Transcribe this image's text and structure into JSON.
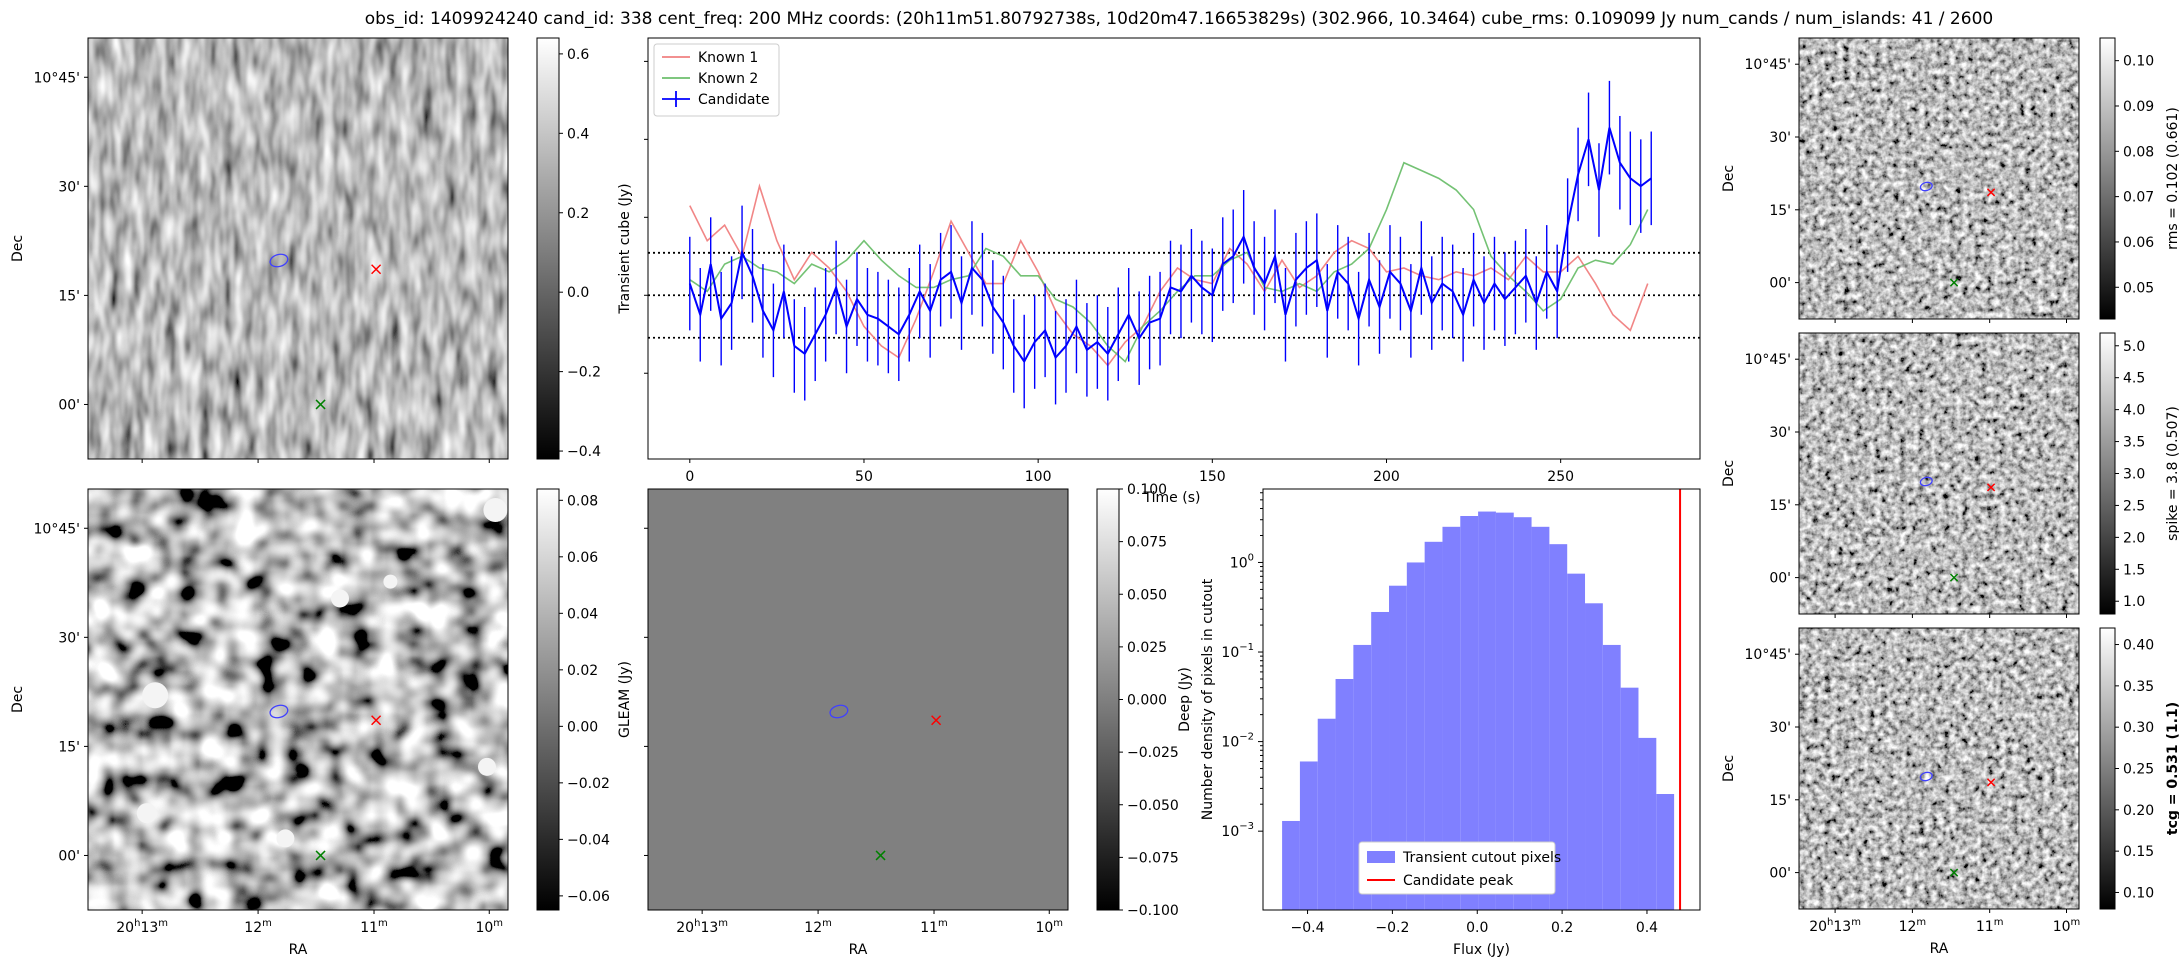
{
  "title": "obs_id: 1409924240 cand_id: 338 cent_freq: 200 MHz coords: (20h11m51.80792738s, 10d20m47.16653829s) (302.966, 10.3464) cube_rms: 0.109099 Jy num_cands / num_islands: 41 / 2600",
  "colors": {
    "known1": "#f08080",
    "known2": "#6dbf6d",
    "candidate": "#0000ff",
    "hist": "#8080ff",
    "peak": "#ff0000",
    "red_marker": "#ff0000",
    "green_marker": "#008000",
    "ellipse": "#4040ff"
  },
  "chart_data": [
    {
      "type": "heatmap",
      "panel": "transient-cube",
      "cbar_label": "Transient cube (Jy)",
      "cbar_ticks": [
        "0.6",
        "0.4",
        "0.2",
        "0.0",
        "−0.2",
        "−0.4"
      ],
      "cbar_range": [
        -0.42,
        0.64
      ],
      "ylabel": "Dec",
      "xlabel": "",
      "dec_ticks": [
        "10°45'",
        "30'",
        "15'",
        "00'"
      ],
      "ra_ticks": [],
      "markers": {
        "red_x": [
          20.183,
          10.31
        ],
        "green_x": [
          20.191,
          10.0
        ],
        "ellipse": [
          20.197,
          10.33
        ]
      },
      "texture": "stripes"
    },
    {
      "type": "heatmap",
      "panel": "gleam",
      "cbar_label": "GLEAM (Jy)",
      "cbar_ticks": [
        "0.08",
        "0.06",
        "0.04",
        "0.02",
        "0.00",
        "−0.02",
        "−0.04",
        "−0.06"
      ],
      "cbar_range": [
        -0.065,
        0.084
      ],
      "ylabel": "Dec",
      "xlabel": "RA",
      "dec_ticks": [
        "10°45'",
        "30'",
        "15'",
        "00'"
      ],
      "ra_ticks": [
        "20h13m",
        "12m",
        "11m",
        "10m"
      ],
      "markers": {
        "red_x": [
          20.183,
          10.31
        ],
        "green_x": [
          20.191,
          10.0
        ],
        "ellipse": [
          20.197,
          10.33
        ]
      },
      "texture": "blobs"
    },
    {
      "type": "heatmap",
      "panel": "deep",
      "cbar_label": "Deep (Jy)",
      "cbar_ticks": [
        "0.100",
        "0.075",
        "0.050",
        "0.025",
        "0.000",
        "−0.025",
        "−0.050",
        "−0.075",
        "−0.100"
      ],
      "cbar_range": [
        -0.1,
        0.1
      ],
      "ylabel": "",
      "xlabel": "RA",
      "dec_ticks": [],
      "ra_ticks": [
        "20h13m",
        "12m",
        "11m",
        "10m"
      ],
      "markers": {
        "red_x": [
          20.183,
          10.31
        ],
        "green_x": [
          20.191,
          10.0
        ],
        "ellipse": [
          20.197,
          10.33
        ]
      },
      "texture": "flat"
    },
    {
      "type": "line",
      "panel": "lightcurve",
      "xlabel": "Time (s)",
      "ylabel": "",
      "xlim": [
        -12,
        290
      ],
      "ylim": [
        -0.42,
        0.66
      ],
      "x_ticks": [
        "0",
        "50",
        "100",
        "150",
        "200",
        "250"
      ],
      "hlines": [
        -0.109,
        0.0,
        0.109
      ],
      "legend": {
        "location": "upper left",
        "entries": [
          "Known 1",
          "Known 2",
          "Candidate"
        ]
      },
      "series": [
        {
          "name": "Known 1",
          "x": [
            0,
            5,
            10,
            15,
            20,
            25,
            30,
            35,
            40,
            45,
            50,
            55,
            60,
            65,
            70,
            75,
            80,
            85,
            90,
            95,
            100,
            105,
            110,
            115,
            120,
            125,
            130,
            135,
            140,
            145,
            150,
            155,
            160,
            165,
            170,
            175,
            180,
            185,
            190,
            195,
            200,
            205,
            210,
            215,
            220,
            225,
            230,
            235,
            240,
            245,
            250,
            255,
            260,
            265,
            270,
            275
          ],
          "values": [
            0.23,
            0.14,
            0.18,
            0.1,
            0.28,
            0.14,
            0.04,
            0.11,
            0.07,
            0.01,
            -0.08,
            -0.13,
            -0.16,
            -0.06,
            0.06,
            0.19,
            0.11,
            0.03,
            0.03,
            0.14,
            0.06,
            -0.04,
            -0.1,
            -0.13,
            -0.18,
            -0.12,
            -0.08,
            0.01,
            0.07,
            0.04,
            0.03,
            0.12,
            0.08,
            0.01,
            0.09,
            0.02,
            0.05,
            0.11,
            0.14,
            0.12,
            0.06,
            0.07,
            0.05,
            0.04,
            0.06,
            0.05,
            0.07,
            0.04,
            0.1,
            0.06,
            0.06,
            0.1,
            0.03,
            -0.05,
            -0.09,
            0.03
          ]
        },
        {
          "name": "Known 2",
          "x": [
            0,
            5,
            10,
            15,
            20,
            25,
            30,
            35,
            40,
            45,
            50,
            55,
            60,
            65,
            70,
            75,
            80,
            85,
            90,
            95,
            100,
            105,
            110,
            115,
            120,
            125,
            130,
            135,
            140,
            145,
            150,
            155,
            160,
            165,
            170,
            175,
            180,
            185,
            190,
            195,
            200,
            205,
            210,
            215,
            220,
            225,
            230,
            235,
            240,
            245,
            250,
            255,
            260,
            265,
            270,
            275
          ],
          "values": [
            0.04,
            0.01,
            0.08,
            0.1,
            0.07,
            0.06,
            0.03,
            0.08,
            0.06,
            0.09,
            0.14,
            0.09,
            0.05,
            0.02,
            0.02,
            0.04,
            0.05,
            0.12,
            0.1,
            0.05,
            0.05,
            -0.01,
            -0.03,
            -0.07,
            -0.13,
            -0.17,
            -0.08,
            -0.04,
            0.01,
            0.05,
            0.05,
            0.09,
            0.11,
            0.02,
            0.01,
            0.03,
            0.01,
            0.06,
            0.08,
            0.12,
            0.22,
            0.34,
            0.32,
            0.3,
            0.27,
            0.22,
            0.1,
            0.05,
            0.01,
            -0.04,
            -0.01,
            0.07,
            0.09,
            0.08,
            0.13,
            0.22
          ]
        },
        {
          "name": "Candidate",
          "x": [
            0,
            3,
            6,
            9,
            12,
            15,
            18,
            21,
            24,
            27,
            30,
            33,
            36,
            39,
            42,
            45,
            48,
            51,
            54,
            57,
            60,
            63,
            66,
            69,
            72,
            75,
            78,
            81,
            84,
            87,
            90,
            93,
            96,
            99,
            102,
            105,
            108,
            111,
            114,
            117,
            120,
            123,
            126,
            129,
            132,
            135,
            138,
            141,
            144,
            147,
            150,
            153,
            156,
            159,
            162,
            165,
            168,
            171,
            174,
            177,
            180,
            183,
            186,
            189,
            192,
            195,
            198,
            201,
            204,
            207,
            210,
            213,
            216,
            219,
            222,
            225,
            228,
            231,
            234,
            237,
            240,
            243,
            246,
            249,
            252,
            255,
            258,
            261,
            264,
            267,
            270,
            273,
            276
          ],
          "values": [
            0.03,
            -0.05,
            0.08,
            -0.06,
            -0.02,
            0.11,
            0.05,
            -0.04,
            -0.09,
            0.01,
            -0.13,
            -0.15,
            -0.1,
            -0.05,
            0.02,
            -0.08,
            -0.01,
            -0.05,
            -0.06,
            -0.08,
            -0.1,
            -0.05,
            0.01,
            -0.04,
            0.04,
            0.06,
            -0.02,
            0.07,
            0.04,
            -0.03,
            -0.07,
            -0.13,
            -0.17,
            -0.12,
            -0.09,
            -0.16,
            -0.13,
            -0.08,
            -0.14,
            -0.12,
            -0.15,
            -0.1,
            -0.05,
            -0.11,
            -0.07,
            -0.06,
            0.02,
            0.01,
            0.05,
            0.02,
            0.0,
            0.08,
            0.1,
            0.15,
            0.07,
            0.03,
            0.1,
            -0.05,
            0.04,
            0.07,
            0.09,
            -0.04,
            0.06,
            0.03,
            -0.06,
            0.04,
            -0.03,
            0.06,
            0.03,
            -0.04,
            0.07,
            -0.02,
            0.03,
            0.01,
            -0.05,
            0.04,
            -0.02,
            0.03,
            -0.01,
            0.02,
            0.05,
            -0.02,
            0.06,
            0.01,
            0.18,
            0.31,
            0.4,
            0.27,
            0.43,
            0.34,
            0.3,
            0.28,
            0.3
          ],
          "errors": [
            0.12,
            0.12,
            0.12,
            0.12,
            0.12,
            0.12,
            0.12,
            0.12,
            0.12,
            0.12,
            0.12,
            0.12,
            0.12,
            0.12,
            0.12,
            0.12,
            0.12,
            0.12,
            0.12,
            0.12,
            0.12,
            0.12,
            0.12,
            0.12,
            0.12,
            0.12,
            0.12,
            0.12,
            0.12,
            0.12,
            0.12,
            0.12,
            0.12,
            0.12,
            0.12,
            0.12,
            0.12,
            0.12,
            0.12,
            0.12,
            0.12,
            0.12,
            0.12,
            0.12,
            0.12,
            0.12,
            0.12,
            0.12,
            0.12,
            0.12,
            0.12,
            0.12,
            0.12,
            0.12,
            0.12,
            0.12,
            0.12,
            0.12,
            0.12,
            0.12,
            0.12,
            0.12,
            0.12,
            0.12,
            0.12,
            0.12,
            0.12,
            0.12,
            0.12,
            0.12,
            0.12,
            0.12,
            0.12,
            0.12,
            0.12,
            0.12,
            0.12,
            0.12,
            0.12,
            0.12,
            0.12,
            0.12,
            0.12,
            0.12,
            0.12,
            0.12,
            0.12,
            0.12,
            0.12,
            0.12,
            0.12,
            0.12,
            0.12
          ]
        }
      ]
    },
    {
      "type": "bar",
      "panel": "histogram",
      "xlabel": "Flux (Jy)",
      "ylabel": "Number density of pixels in cutout",
      "log_y": true,
      "ylim_log10": [
        -3.88,
        0.82
      ],
      "xlim": [
        -0.505,
        0.525
      ],
      "x_ticks": [
        "−0.4",
        "−0.2",
        "0.0",
        "0.2",
        "0.4"
      ],
      "y_ticks": [
        {
          "label": "10",
          "exp": "0",
          "value": 0
        },
        {
          "label": "10",
          "exp": "−1",
          "value": -1
        },
        {
          "label": "10",
          "exp": "−2",
          "value": -2
        },
        {
          "label": "10",
          "exp": "−3",
          "value": -3
        }
      ],
      "bin_edges": [
        -0.46,
        -0.418,
        -0.376,
        -0.334,
        -0.292,
        -0.25,
        -0.208,
        -0.166,
        -0.124,
        -0.082,
        -0.04,
        0.002,
        0.044,
        0.086,
        0.128,
        0.17,
        0.212,
        0.254,
        0.296,
        0.338,
        0.38,
        0.422,
        0.464
      ],
      "densities": [
        0.0013,
        0.006,
        0.018,
        0.05,
        0.12,
        0.28,
        0.55,
        1.0,
        1.7,
        2.5,
        3.3,
        3.7,
        3.6,
        3.2,
        2.5,
        1.6,
        0.75,
        0.35,
        0.12,
        0.04,
        0.011,
        0.0026
      ],
      "peak_line": 0.478,
      "legend": {
        "location": "lower center",
        "entries": [
          "Transient cutout pixels",
          "Candidate peak"
        ]
      }
    },
    {
      "type": "heatmap",
      "panel": "rms",
      "cbar_label": "rms = 0.102 (0.661)",
      "cbar_ticks": [
        "0.10",
        "0.09",
        "0.08",
        "0.07",
        "0.06",
        "0.05"
      ],
      "cbar_range": [
        0.043,
        0.105
      ],
      "ylabel": "Dec",
      "xlabel": "",
      "dec_ticks": [
        "10°45'",
        "30'",
        "15'",
        "00'"
      ],
      "ra_ticks": [],
      "markers": {
        "red_x": [
          20.183,
          10.31
        ],
        "green_x": [
          20.191,
          10.0
        ],
        "ellipse": [
          20.197,
          10.33
        ]
      },
      "texture": "fine"
    },
    {
      "type": "heatmap",
      "panel": "spike",
      "cbar_label": "spike = 3.8 (0.507)",
      "cbar_ticks": [
        "5.0",
        "4.5",
        "4.0",
        "3.5",
        "3.0",
        "2.5",
        "2.0",
        "1.5",
        "1.0"
      ],
      "cbar_range": [
        0.8,
        5.2
      ],
      "ylabel": "Dec",
      "xlabel": "",
      "dec_ticks": [
        "10°45'",
        "30'",
        "15'",
        "00'"
      ],
      "ra_ticks": [],
      "markers": {
        "red_x": [
          20.183,
          10.31
        ],
        "green_x": [
          20.191,
          10.0
        ],
        "ellipse": [
          20.197,
          10.33
        ]
      },
      "texture": "fine"
    },
    {
      "type": "heatmap",
      "panel": "tcg",
      "cbar_label": "tcg = 0.531 (1.1)",
      "cbar_ticks": [
        "0.40",
        "0.35",
        "0.30",
        "0.25",
        "0.20",
        "0.15",
        "0.10"
      ],
      "cbar_range": [
        0.08,
        0.42
      ],
      "ylabel": "Dec",
      "xlabel": "RA",
      "dec_ticks": [
        "10°45'",
        "30'",
        "15'",
        "00'"
      ],
      "ra_ticks": [
        "20h13m",
        "12m",
        "11m",
        "10m"
      ],
      "markers": {
        "red_x": [
          20.183,
          10.31
        ],
        "green_x": [
          20.191,
          10.0
        ],
        "ellipse": [
          20.197,
          10.33
        ]
      },
      "texture": "fine"
    }
  ]
}
